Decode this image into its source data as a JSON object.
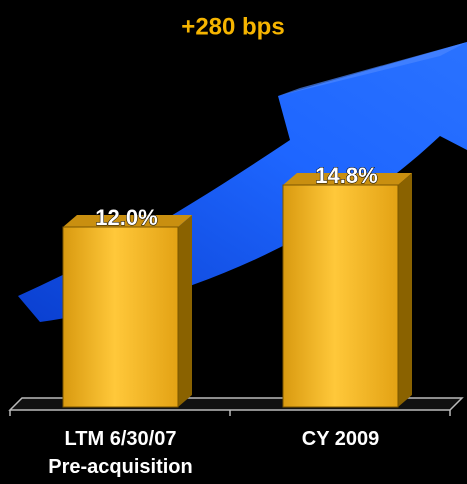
{
  "chart_data": {
    "type": "bar3d",
    "title": "+280 bps",
    "categories": [
      "LTM 6/30/07\nPre-acquisition",
      "CY 2009"
    ],
    "values": [
      12.0,
      14.8
    ],
    "value_labels": [
      "12.0%",
      "14.8%"
    ],
    "color": "#f0ae1c",
    "title_color": "#f5b400"
  }
}
